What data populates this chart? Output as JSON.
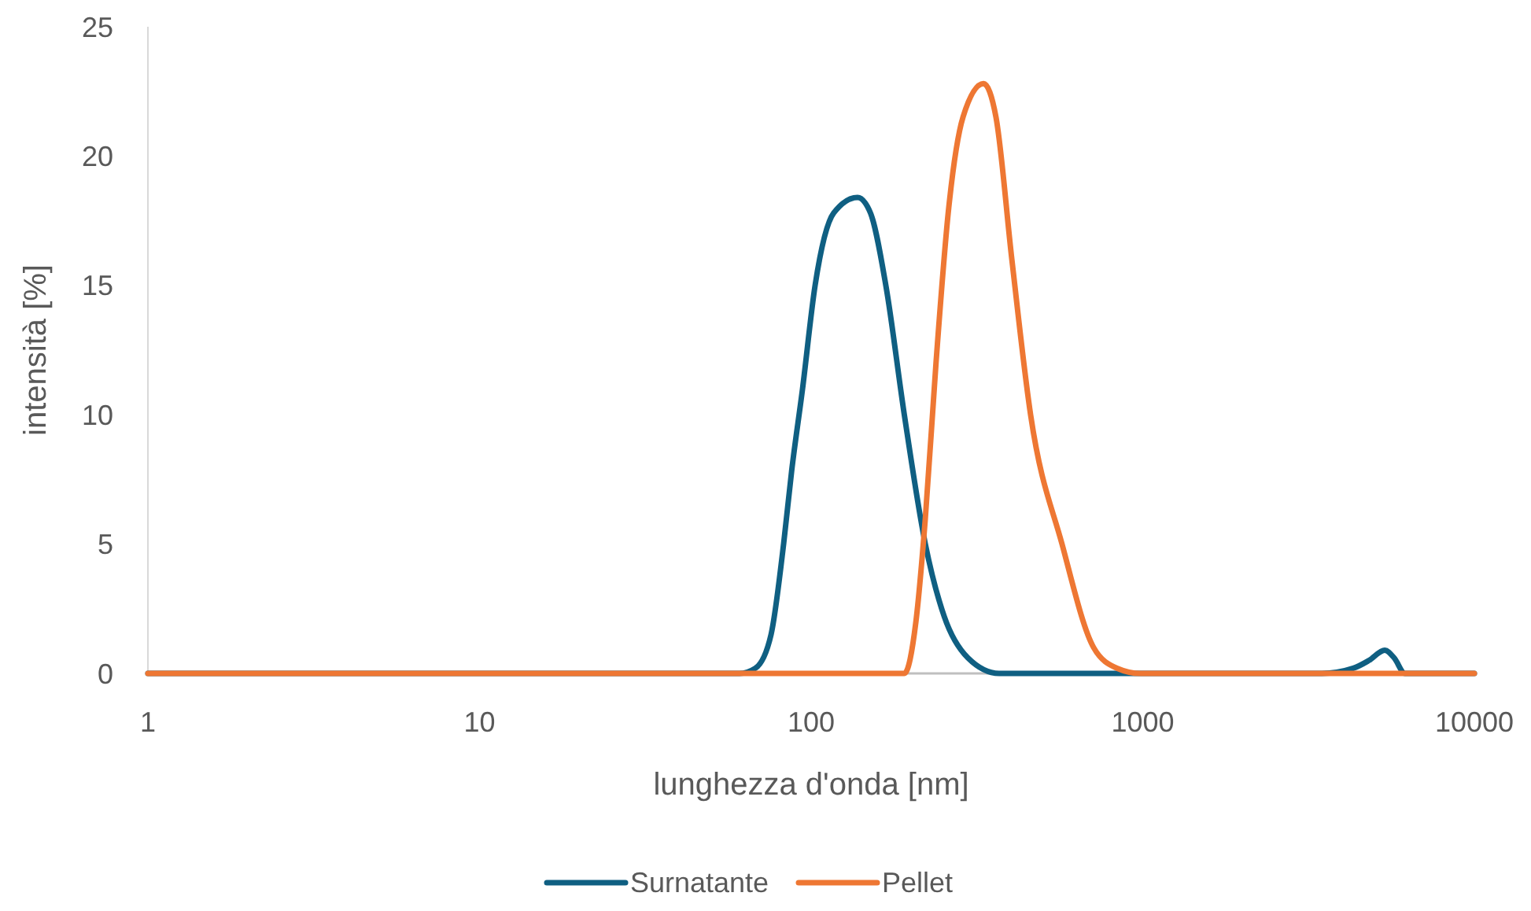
{
  "chart_data": {
    "type": "line",
    "xlabel": "lunghezza d'onda [nm]",
    "ylabel": "intensità [%]",
    "log": "x",
    "xlim": [
      1,
      10000
    ],
    "xticks": [
      1,
      10,
      100,
      1000,
      10000
    ],
    "ylim": [
      0,
      25
    ],
    "yticks": [
      0,
      5,
      10,
      15,
      20,
      25
    ],
    "grid": false,
    "legend": "bottom",
    "marker": "none",
    "line_style": "solid",
    "series": [
      {
        "name": "Surnatante",
        "color": "#0f5f82",
        "x": [
          1,
          60.8,
          67.9,
          75.7,
          82.6,
          87.3,
          94.2,
          102.8,
          117,
          138,
          151,
          168,
          191,
          221,
          252,
          297,
          369,
          3467,
          4315,
          4808,
          5370,
          5730,
          6180,
          10000
        ],
        "values": [
          0,
          0,
          0.2,
          1.5,
          5,
          7.8,
          11,
          15,
          17.8,
          18.4,
          17.8,
          15,
          10,
          5,
          2.2,
          0.6,
          0,
          0,
          0.2,
          0.5,
          0.9,
          0.6,
          0,
          0
        ]
      },
      {
        "name": "Pellet",
        "color": "#ee7733",
        "x": [
          1,
          172,
          191,
          207,
          221,
          238,
          260,
          287,
          331,
          361,
          403,
          459,
          571,
          711,
          837,
          986,
          10000
        ],
        "values": [
          0,
          0,
          0,
          2,
          6,
          12,
          18,
          21.5,
          22.8,
          21.5,
          16,
          10,
          5,
          1,
          0.2,
          0,
          0
        ]
      }
    ]
  }
}
